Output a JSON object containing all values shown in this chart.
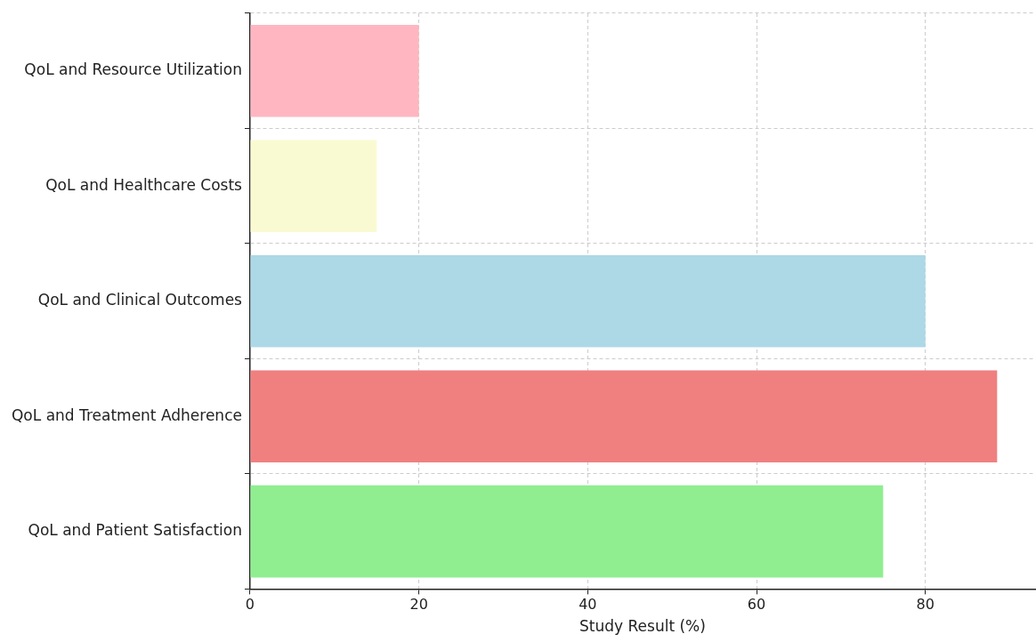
{
  "chart_data": {
    "type": "bar",
    "orientation": "horizontal",
    "categories": [
      "QoL and Resource Utilization",
      "QoL and Healthcare Costs",
      "QoL and Clinical Outcomes",
      "QoL and Treatment Adherence",
      "QoL and Patient Satisfaction"
    ],
    "values": [
      20,
      15,
      80,
      88.5,
      75
    ],
    "colors": [
      "#ffb6c1",
      "#fafad2",
      "#add8e6",
      "#f08080",
      "#90ee90"
    ],
    "xlabel": "Study Result (%)",
    "xlim": [
      0,
      93
    ],
    "xticks": [
      0,
      20,
      40,
      60,
      80
    ],
    "grid": true,
    "legend": false
  }
}
